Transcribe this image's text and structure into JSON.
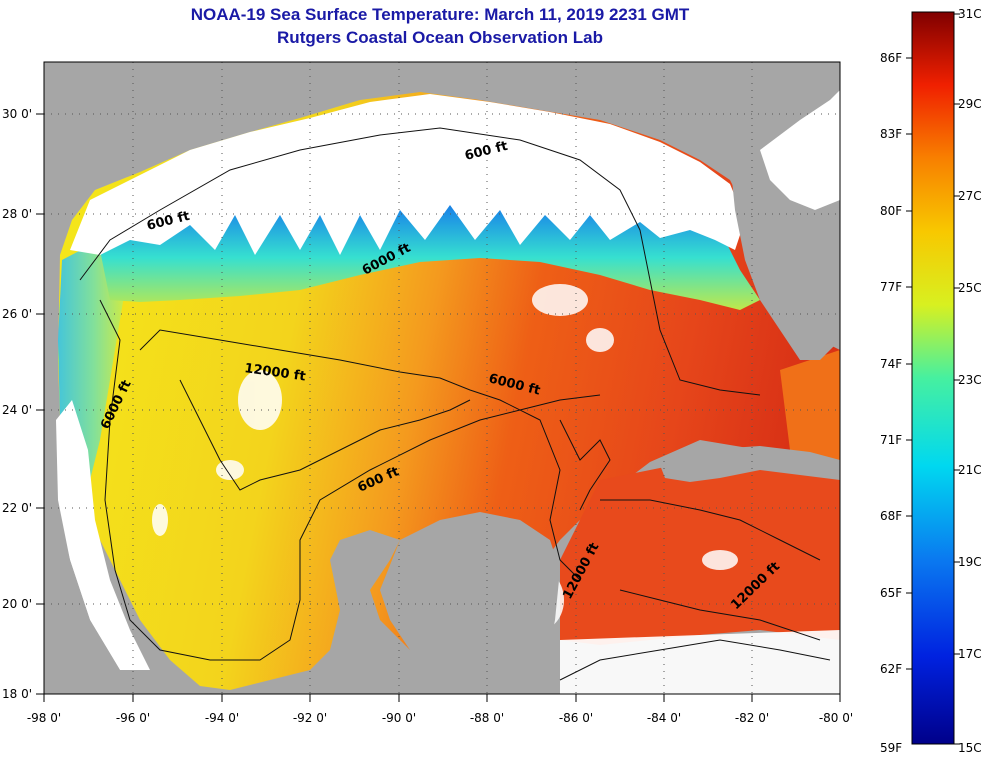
{
  "title": "NOAA-19 Sea Surface Temperature:  March 11, 2019 2231 GMT",
  "subtitle": "Rutgers Coastal Ocean Observation Lab",
  "x_ticks": [
    "-98 0'",
    "-96 0'",
    "-94 0'",
    "-92 0'",
    "-90 0'",
    "-88 0'",
    "-86 0'",
    "-84 0'",
    "-82 0'",
    "-80 0'"
  ],
  "y_ticks": [
    "30 0'",
    "28 0'",
    "26 0'",
    "24 0'",
    "22 0'",
    "20 0'",
    "18 0'"
  ],
  "contour_labels": [
    "600 ft",
    "600 ft",
    "6000 ft",
    "12000 ft",
    "6000 ft",
    "6000 ft",
    "600 ft",
    "12000 ft",
    "12000 ft"
  ],
  "colorbar": {
    "fahrenheit": [
      "86F",
      "83F",
      "80F",
      "77F",
      "74F",
      "71F",
      "68F",
      "65F",
      "62F",
      "59F"
    ],
    "celsius": [
      "31C",
      "29C",
      "27C",
      "25C",
      "23C",
      "21C",
      "19C",
      "17C",
      "15C"
    ]
  },
  "colors": {
    "land": "#a6a6a6",
    "cloud": "#ffffff",
    "title": "#1a1aa6"
  }
}
